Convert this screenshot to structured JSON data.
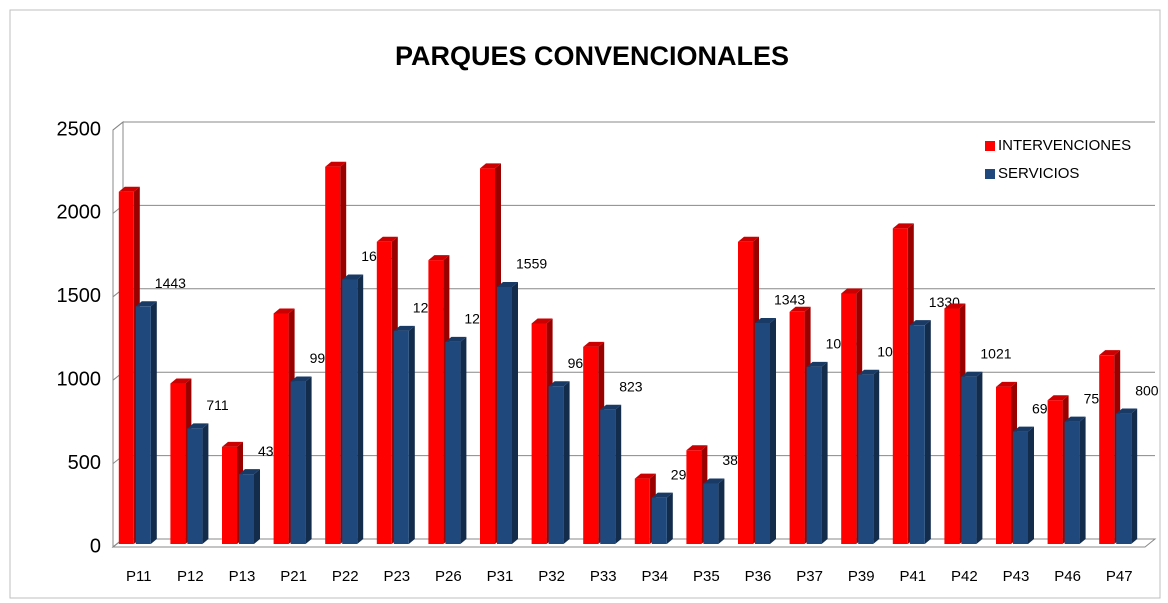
{
  "chart_data": {
    "type": "bar",
    "title": "PARQUES CONVENCIONALES",
    "categories": [
      "P11",
      "P12",
      "P13",
      "P21",
      "P22",
      "P23",
      "P26",
      "P31",
      "P32",
      "P33",
      "P34",
      "P35",
      "P36",
      "P37",
      "P39",
      "P41",
      "P42",
      "P43",
      "P46",
      "P47"
    ],
    "series": [
      {
        "name": "INTERVENCIONES",
        "color": "#ff0000",
        "values": [
          2130,
          980,
          600,
          1400,
          2280,
          1830,
          1720,
          2270,
          1340,
          1200,
          410,
          580,
          1830,
          1410,
          1520,
          1910,
          1430,
          960,
          880,
          1150
        ]
      },
      {
        "name": "SERVICIOS",
        "color": "#1f497d",
        "values": [
          1443,
          711,
          437,
          992,
          1604,
          1296,
          1230,
          1559,
          964,
          823,
          296,
          381,
          1343,
          1080,
          1033,
          1330,
          1021,
          692,
          752,
          800
        ],
        "show_labels": true
      }
    ],
    "ylim": [
      0,
      2500
    ],
    "yticks": [
      0,
      500,
      1000,
      1500,
      2000,
      2500
    ],
    "grid": true,
    "legend": "top-right"
  }
}
